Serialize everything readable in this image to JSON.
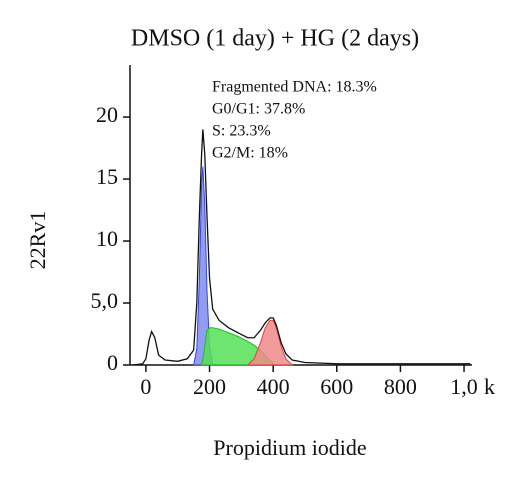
{
  "chart_data": {
    "type": "area",
    "title": "DMSO (1 day) + HG (2 days)",
    "ylabel": "22Rv1",
    "xlabel": "Propidium iodide",
    "x_unit": "k",
    "annotations": [
      "Fragmented DNA: 18.3%",
      "G0/G1: 37.8%",
      "S: 23.3%",
      "G2/M: 18%"
    ],
    "xlim": [
      -50,
      1025
    ],
    "ylim": [
      0,
      24.2
    ],
    "xticks": [
      0,
      200,
      400,
      600,
      800,
      {
        "value": 1000,
        "label": "1,0"
      }
    ],
    "yticks": [
      0,
      {
        "value": 5,
        "label": "5,0"
      },
      10,
      15,
      20
    ],
    "x": [
      -40,
      -10,
      0,
      10,
      18,
      28,
      40,
      60,
      100,
      130,
      150,
      160,
      168,
      175,
      179,
      185,
      192,
      200,
      210,
      230,
      260,
      290,
      320,
      340,
      360,
      375,
      390,
      400,
      410,
      425,
      440,
      460,
      500,
      600,
      800,
      1000,
      1020
    ],
    "series": [
      {
        "color": "#3344dd",
        "fill": "#7d8cf0",
        "values": [
          null,
          null,
          null,
          null,
          null,
          null,
          null,
          null,
          null,
          null,
          0,
          1.3,
          7,
          14.5,
          16,
          13,
          6,
          1.5,
          0,
          null,
          null,
          null,
          null,
          null,
          null,
          null,
          null,
          null,
          null,
          null,
          null,
          null,
          null,
          null,
          null,
          null,
          null
        ]
      },
      {
        "color": "#22bb22",
        "fill": "#55e055",
        "values": [
          null,
          null,
          null,
          null,
          null,
          null,
          null,
          null,
          null,
          null,
          null,
          null,
          null,
          0,
          0.5,
          1.5,
          2.8,
          3.0,
          3.0,
          2.9,
          2.6,
          2.3,
          1.9,
          1.6,
          1.2,
          0.8,
          0.4,
          0.1,
          0,
          null,
          null,
          null,
          null,
          null,
          null,
          null,
          null
        ]
      },
      {
        "color": "#dd4444",
        "fill": "#f08a8a",
        "values": [
          null,
          null,
          null,
          null,
          null,
          null,
          null,
          null,
          null,
          null,
          null,
          null,
          null,
          null,
          null,
          null,
          null,
          null,
          null,
          null,
          null,
          null,
          0,
          0.5,
          1.8,
          3.0,
          3.6,
          3.6,
          3.0,
          1.5,
          0.5,
          0,
          null,
          null,
          null,
          null,
          null
        ]
      },
      {
        "color": "#111111",
        "fill": null,
        "values": [
          0,
          0.1,
          0.5,
          2.0,
          2.7,
          2.2,
          0.8,
          0.4,
          0.3,
          0.5,
          1.2,
          5,
          12,
          17,
          19,
          17,
          12,
          7,
          4.5,
          3.6,
          3.0,
          2.6,
          2.2,
          2.2,
          2.8,
          3.4,
          3.8,
          3.8,
          3.2,
          1.8,
          0.9,
          0.4,
          0.2,
          0.1,
          0.1,
          0.1,
          0.1
        ]
      }
    ]
  }
}
